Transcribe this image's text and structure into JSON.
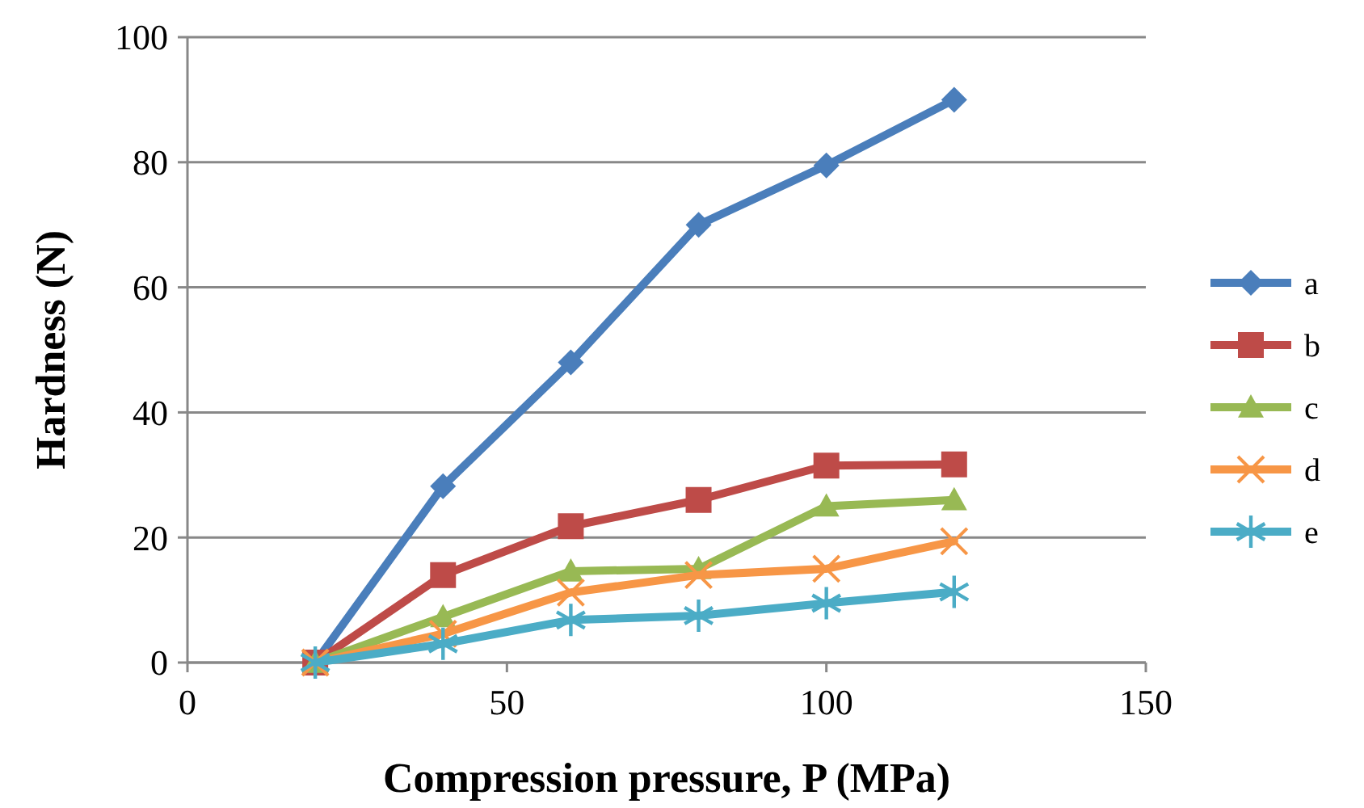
{
  "chart_data": {
    "type": "line",
    "xlabel": "Compression pressure, P (MPa)",
    "ylabel": "Hardness (N)",
    "x": [
      20,
      40,
      60,
      80,
      100,
      120
    ],
    "xlim": [
      0,
      150
    ],
    "xticks": [
      0,
      50,
      100,
      150
    ],
    "ylim": [
      0,
      100
    ],
    "yticks": [
      0,
      20,
      40,
      60,
      80,
      100
    ],
    "grid": "y",
    "legend": "right",
    "line_style": "solid",
    "series": [
      {
        "name": "a",
        "color": "#4a7ebb",
        "marker": "diamond",
        "values": [
          0,
          28.2,
          48,
          70,
          79.5,
          90
        ]
      },
      {
        "name": "b",
        "color": "#be4b48",
        "marker": "square",
        "values": [
          0,
          14,
          21.8,
          26,
          31.5,
          31.7
        ]
      },
      {
        "name": "c",
        "color": "#98b954",
        "marker": "triangle",
        "values": [
          0,
          7.3,
          14.6,
          15,
          25,
          26
        ]
      },
      {
        "name": "d",
        "color": "#f79646",
        "marker": "cross",
        "values": [
          0,
          4.6,
          11.2,
          14,
          15,
          19.4
        ]
      },
      {
        "name": "e",
        "color": "#4bacc6",
        "marker": "star",
        "values": [
          0,
          3,
          6.8,
          7.5,
          9.5,
          11.3
        ]
      }
    ]
  }
}
